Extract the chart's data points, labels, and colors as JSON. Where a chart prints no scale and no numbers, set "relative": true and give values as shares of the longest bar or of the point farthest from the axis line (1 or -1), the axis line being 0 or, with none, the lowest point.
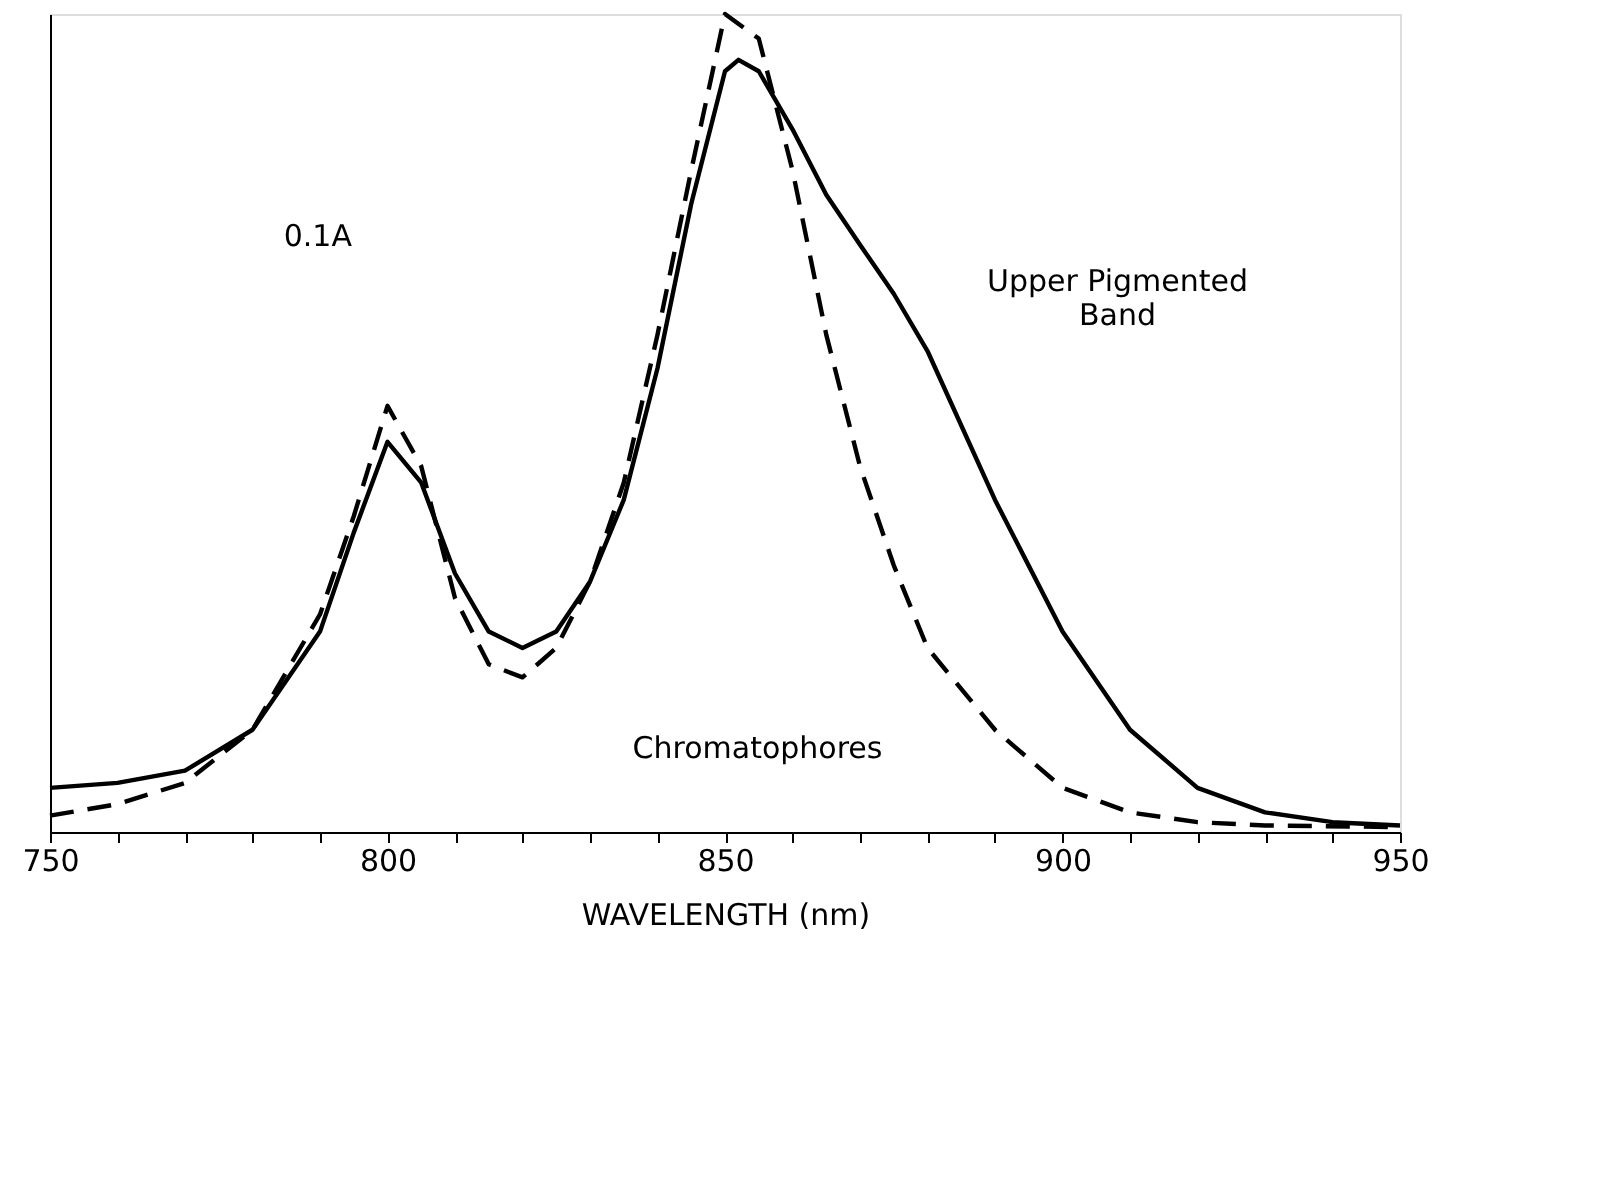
{
  "chart_data": {
    "type": "line",
    "relative": true,
    "xlabel": "WAVELENGTH (nm)",
    "xlim": [
      750,
      950
    ],
    "xticks": [
      750,
      {
        "value": 760,
        "label": null
      },
      {
        "value": 770,
        "label": null
      },
      {
        "value": 780,
        "label": null
      },
      {
        "value": 790,
        "label": null
      },
      800,
      {
        "value": 810,
        "label": null
      },
      {
        "value": 820,
        "label": null
      },
      {
        "value": 830,
        "label": null
      },
      {
        "value": 840,
        "label": null
      },
      850,
      {
        "value": 860,
        "label": null
      },
      {
        "value": 870,
        "label": null
      },
      {
        "value": 880,
        "label": null
      },
      {
        "value": 890,
        "label": null
      },
      900,
      {
        "value": 910,
        "label": null
      },
      {
        "value": 920,
        "label": null
      },
      {
        "value": 930,
        "label": null
      },
      {
        "value": 940,
        "label": null
      },
      950
    ],
    "annotations": [
      "0.1A"
    ],
    "legend": false,
    "grid": false,
    "series": [
      {
        "name": "Upper Pigmented Band",
        "color": "#000000",
        "line_style": "solid",
        "x": [
          750,
          760,
          770,
          780,
          790,
          795,
          800,
          805,
          810,
          815,
          820,
          825,
          830,
          835,
          840,
          845,
          850,
          852,
          855,
          860,
          865,
          870,
          875,
          880,
          890,
          900,
          910,
          920,
          930,
          940,
          950
        ],
        "values": [
          0.054,
          0.06,
          0.075,
          0.125,
          0.245,
          0.366,
          0.477,
          0.427,
          0.316,
          0.245,
          0.225,
          0.245,
          0.306,
          0.406,
          0.567,
          0.768,
          0.93,
          0.944,
          0.93,
          0.859,
          0.779,
          0.718,
          0.658,
          0.588,
          0.406,
          0.245,
          0.125,
          0.054,
          0.024,
          0.012,
          0.008
        ]
      },
      {
        "name": "Chromatophores",
        "color": "#000000",
        "line_style": "dashed",
        "x": [
          750,
          760,
          770,
          780,
          790,
          795,
          800,
          805,
          810,
          815,
          820,
          825,
          830,
          835,
          840,
          845,
          850,
          855,
          860,
          865,
          870,
          875,
          880,
          890,
          900,
          910,
          920,
          930,
          950
        ],
        "values": [
          0.02,
          0.034,
          0.06,
          0.125,
          0.266,
          0.386,
          0.521,
          0.447,
          0.286,
          0.205,
          0.189,
          0.225,
          0.306,
          0.427,
          0.608,
          0.809,
          1.0,
          0.97,
          0.809,
          0.608,
          0.447,
          0.326,
          0.225,
          0.125,
          0.054,
          0.024,
          0.012,
          0.008,
          0.006
        ]
      }
    ]
  }
}
